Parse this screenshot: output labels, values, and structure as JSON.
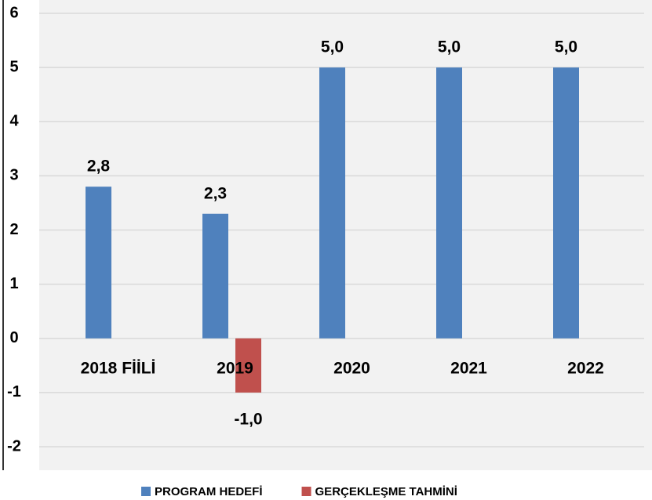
{
  "chart_data": {
    "type": "bar",
    "categories": [
      "2018 FİİLİ",
      "2019",
      "2020",
      "2021",
      "2022"
    ],
    "series": [
      {
        "name": "PROGRAM HEDEFİ",
        "color": "#4f81bd",
        "values": [
          2.8,
          2.3,
          5.0,
          5.0,
          5.0
        ],
        "value_labels": [
          "2,8",
          "2,3",
          "5,0",
          "5,0",
          "5,0"
        ]
      },
      {
        "name": "GERÇEKLEŞME TAHMİNİ",
        "color": "#c0504d",
        "values": [
          null,
          -1.0,
          null,
          null,
          null
        ],
        "value_labels": [
          null,
          "-1,0",
          null,
          null,
          null
        ]
      }
    ],
    "ylim": [
      -2,
      6
    ],
    "yticks": [
      -2,
      -1,
      0,
      1,
      2,
      3,
      4,
      5,
      6
    ],
    "grid": true,
    "legend": "bottom"
  }
}
